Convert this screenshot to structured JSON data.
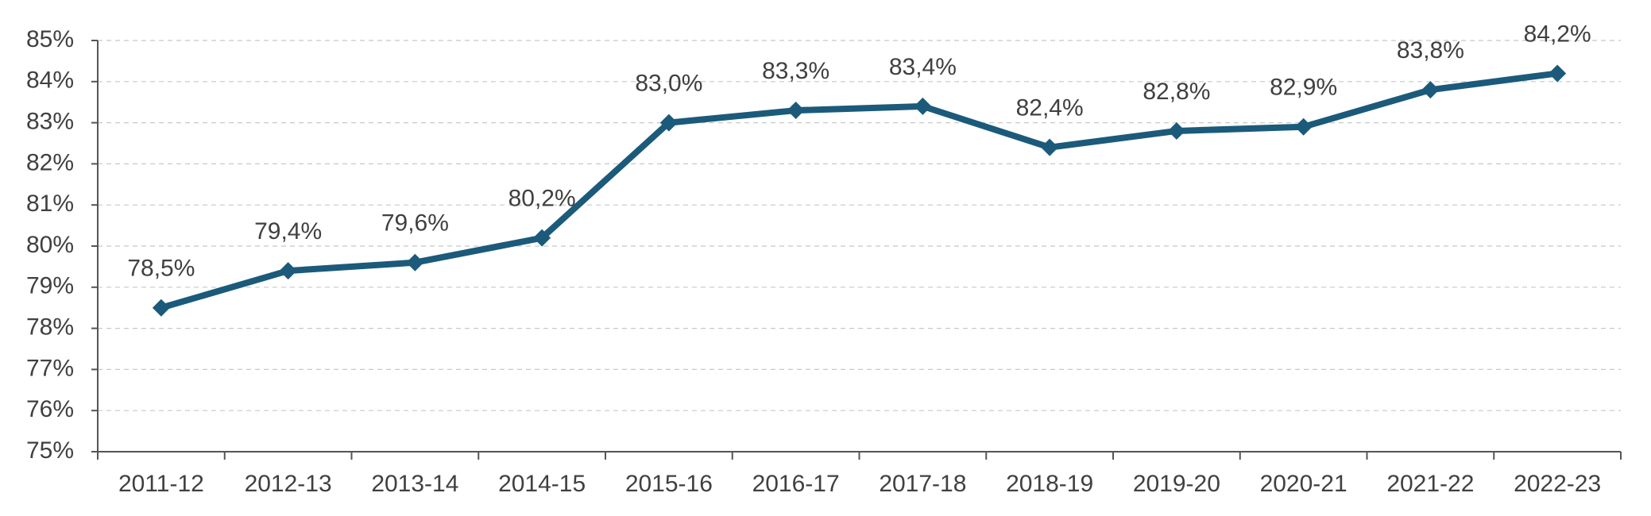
{
  "chart_data": {
    "type": "line",
    "categories": [
      "2011-12",
      "2012-13",
      "2013-14",
      "2014-15",
      "2015-16",
      "2016-17",
      "2017-18",
      "2018-19",
      "2019-20",
      "2020-21",
      "2021-22",
      "2022-23"
    ],
    "series": [
      {
        "values": [
          78.5,
          79.4,
          79.6,
          80.2,
          83.0,
          83.3,
          83.4,
          82.4,
          82.8,
          82.9,
          83.8,
          84.2
        ],
        "data_labels": [
          "78,5%",
          "79,4%",
          "79,6%",
          "80,2%",
          "83,0%",
          "83,3%",
          "83,4%",
          "82,4%",
          "82,8%",
          "82,9%",
          "83,8%",
          "84,2%"
        ],
        "color": "#1b5a7a",
        "marker": "diamond"
      }
    ],
    "ylim": [
      75,
      85
    ],
    "y_ticks": [
      75,
      76,
      77,
      78,
      79,
      80,
      81,
      82,
      83,
      84,
      85
    ],
    "y_tick_labels": [
      "75%",
      "76%",
      "77%",
      "78%",
      "79%",
      "80%",
      "81%",
      "82%",
      "83%",
      "84%",
      "85%"
    ],
    "title": "",
    "xlabel": "",
    "ylabel": "",
    "grid": "horizontal-dashed",
    "legend": "none"
  },
  "colors": {
    "line": "#1b5a7a",
    "grid": "#c8c8c8",
    "axis": "#555555",
    "text": "#404040"
  }
}
